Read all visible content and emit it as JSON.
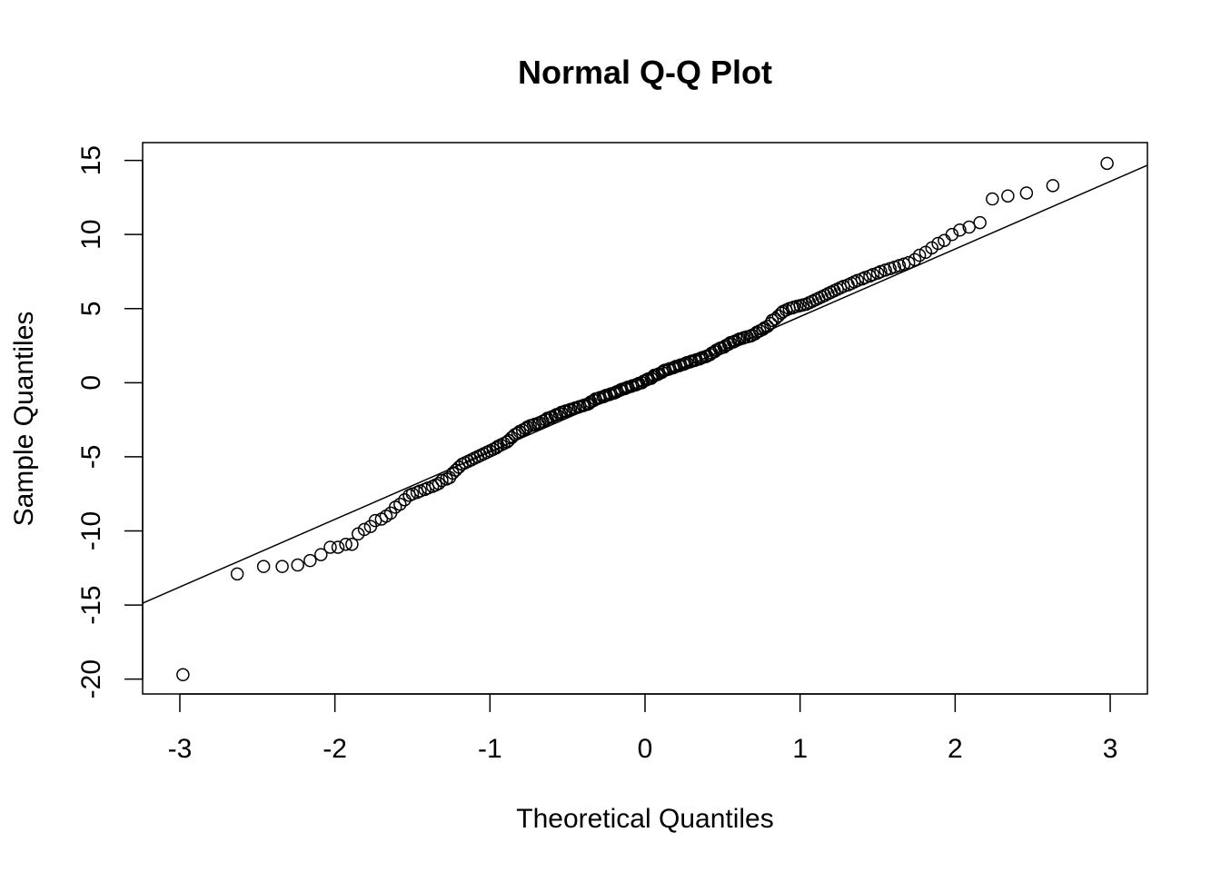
{
  "chart_data": {
    "type": "scatter",
    "title": "Normal Q-Q Plot",
    "xlabel": "Theoretical Quantiles",
    "ylabel": "Sample Quantiles",
    "xlim": [
      -3.24,
      3.24
    ],
    "ylim": [
      -21.0,
      16.2
    ],
    "xticks": [
      -3,
      -2,
      -1,
      0,
      1,
      2,
      3
    ],
    "xtick_labels": [
      "-3",
      "-2",
      "-1",
      "0",
      "1",
      "2",
      "3"
    ],
    "yticks": [
      -20,
      -15,
      -10,
      -5,
      0,
      5,
      10,
      15
    ],
    "ytick_labels": [
      "-20",
      "-15",
      "-10",
      "-5",
      "0",
      "5",
      "10",
      "15"
    ],
    "grid": false,
    "marker": "open-circle",
    "reference_line": {
      "intercept": -0.1,
      "slope": 4.56
    },
    "series": [
      {
        "points": [
          [
            -2.98,
            -19.7
          ],
          [
            -2.63,
            -12.9
          ],
          [
            -2.46,
            -12.4
          ],
          [
            -2.34,
            -12.4
          ],
          [
            -2.24,
            -12.3
          ],
          [
            -2.16,
            -12.0
          ],
          [
            -2.09,
            -11.6
          ],
          [
            -2.03,
            -11.1
          ],
          [
            -1.98,
            -11.1
          ],
          [
            -1.93,
            -10.9
          ],
          [
            -1.89,
            -10.9
          ],
          [
            -1.85,
            -10.2
          ],
          [
            -1.81,
            -9.9
          ],
          [
            -1.77,
            -9.7
          ],
          [
            -1.74,
            -9.3
          ],
          [
            -1.7,
            -9.2
          ],
          [
            -1.67,
            -9.0
          ],
          [
            -1.64,
            -8.8
          ],
          [
            -1.61,
            -8.4
          ],
          [
            -1.58,
            -8.2
          ],
          [
            -1.55,
            -7.9
          ],
          [
            -1.52,
            -7.6
          ],
          [
            -1.5,
            -7.5
          ],
          [
            -1.47,
            -7.4
          ],
          [
            -1.45,
            -7.3
          ],
          [
            -1.42,
            -7.2
          ],
          [
            -1.4,
            -7.1
          ],
          [
            -1.37,
            -7.0
          ],
          [
            -1.35,
            -6.9
          ],
          [
            -1.33,
            -6.8
          ],
          [
            -1.31,
            -6.6
          ],
          [
            -1.28,
            -6.5
          ],
          [
            -1.26,
            -6.4
          ],
          [
            -1.24,
            -6.1
          ],
          [
            -1.22,
            -5.9
          ],
          [
            -1.2,
            -5.7
          ],
          [
            -1.18,
            -5.5
          ],
          [
            -1.16,
            -5.4
          ],
          [
            -1.14,
            -5.3
          ],
          [
            -1.12,
            -5.2
          ],
          [
            -1.1,
            -5.1
          ],
          [
            -1.08,
            -5.0
          ],
          [
            -1.06,
            -4.9
          ],
          [
            -1.04,
            -4.8
          ],
          [
            -1.02,
            -4.7
          ],
          [
            -1.0,
            -4.6
          ],
          [
            -0.98,
            -4.5
          ],
          [
            -0.96,
            -4.4
          ],
          [
            -0.95,
            -4.3
          ],
          [
            -0.93,
            -4.2
          ],
          [
            -0.91,
            -4.1
          ],
          [
            -0.89,
            -4.0
          ],
          [
            -0.88,
            -3.9
          ],
          [
            -0.86,
            -3.7
          ],
          [
            -0.84,
            -3.5
          ],
          [
            -0.82,
            -3.4
          ],
          [
            -0.81,
            -3.3
          ],
          [
            -0.79,
            -3.2
          ],
          [
            -0.77,
            -3.1
          ],
          [
            -0.76,
            -3.0
          ],
          [
            -0.74,
            -2.9
          ],
          [
            -0.72,
            -2.85
          ],
          [
            -0.71,
            -2.8
          ],
          [
            -0.69,
            -2.75
          ],
          [
            -0.68,
            -2.7
          ],
          [
            -0.66,
            -2.6
          ],
          [
            -0.64,
            -2.5
          ],
          [
            -0.63,
            -2.4
          ],
          [
            -0.61,
            -2.35
          ],
          [
            -0.6,
            -2.3
          ],
          [
            -0.58,
            -2.2
          ],
          [
            -0.57,
            -2.15
          ],
          [
            -0.55,
            -2.1
          ],
          [
            -0.54,
            -2.0
          ],
          [
            -0.52,
            -1.95
          ],
          [
            -0.51,
            -1.9
          ],
          [
            -0.49,
            -1.85
          ],
          [
            -0.48,
            -1.8
          ],
          [
            -0.46,
            -1.75
          ],
          [
            -0.45,
            -1.7
          ],
          [
            -0.43,
            -1.65
          ],
          [
            -0.42,
            -1.6
          ],
          [
            -0.4,
            -1.55
          ],
          [
            -0.39,
            -1.5
          ],
          [
            -0.37,
            -1.45
          ],
          [
            -0.36,
            -1.4
          ],
          [
            -0.35,
            -1.3
          ],
          [
            -0.33,
            -1.2
          ],
          [
            -0.32,
            -1.1
          ],
          [
            -0.3,
            -1.05
          ],
          [
            -0.29,
            -1.0
          ],
          [
            -0.27,
            -0.95
          ],
          [
            -0.26,
            -0.9
          ],
          [
            -0.25,
            -0.85
          ],
          [
            -0.23,
            -0.8
          ],
          [
            -0.22,
            -0.75
          ],
          [
            -0.2,
            -0.7
          ],
          [
            -0.19,
            -0.65
          ],
          [
            -0.18,
            -0.6
          ],
          [
            -0.16,
            -0.5
          ],
          [
            -0.15,
            -0.45
          ],
          [
            -0.13,
            -0.4
          ],
          [
            -0.12,
            -0.35
          ],
          [
            -0.11,
            -0.3
          ],
          [
            -0.09,
            -0.25
          ],
          [
            -0.08,
            -0.2
          ],
          [
            -0.06,
            -0.15
          ],
          [
            -0.05,
            -0.1
          ],
          [
            -0.04,
            -0.05
          ],
          [
            -0.02,
            0.0
          ],
          [
            -0.01,
            0.1
          ],
          [
            0.01,
            0.2
          ],
          [
            0.02,
            0.25
          ],
          [
            0.04,
            0.3
          ],
          [
            0.05,
            0.4
          ],
          [
            0.06,
            0.5
          ],
          [
            0.08,
            0.55
          ],
          [
            0.09,
            0.6
          ],
          [
            0.11,
            0.7
          ],
          [
            0.12,
            0.8
          ],
          [
            0.13,
            0.85
          ],
          [
            0.15,
            0.9
          ],
          [
            0.16,
            0.95
          ],
          [
            0.18,
            1.0
          ],
          [
            0.19,
            1.05
          ],
          [
            0.2,
            1.1
          ],
          [
            0.22,
            1.15
          ],
          [
            0.23,
            1.2
          ],
          [
            0.25,
            1.25
          ],
          [
            0.26,
            1.3
          ],
          [
            0.27,
            1.35
          ],
          [
            0.29,
            1.4
          ],
          [
            0.3,
            1.45
          ],
          [
            0.32,
            1.5
          ],
          [
            0.33,
            1.55
          ],
          [
            0.35,
            1.6
          ],
          [
            0.36,
            1.65
          ],
          [
            0.37,
            1.7
          ],
          [
            0.39,
            1.75
          ],
          [
            0.4,
            1.8
          ],
          [
            0.42,
            1.9
          ],
          [
            0.43,
            2.0
          ],
          [
            0.45,
            2.1
          ],
          [
            0.46,
            2.2
          ],
          [
            0.48,
            2.3
          ],
          [
            0.49,
            2.35
          ],
          [
            0.51,
            2.4
          ],
          [
            0.52,
            2.5
          ],
          [
            0.54,
            2.6
          ],
          [
            0.55,
            2.7
          ],
          [
            0.57,
            2.75
          ],
          [
            0.58,
            2.8
          ],
          [
            0.6,
            2.9
          ],
          [
            0.61,
            2.95
          ],
          [
            0.63,
            3.0
          ],
          [
            0.64,
            3.05
          ],
          [
            0.66,
            3.1
          ],
          [
            0.68,
            3.15
          ],
          [
            0.69,
            3.2
          ],
          [
            0.71,
            3.3
          ],
          [
            0.72,
            3.4
          ],
          [
            0.74,
            3.5
          ],
          [
            0.76,
            3.6
          ],
          [
            0.77,
            3.7
          ],
          [
            0.79,
            3.8
          ],
          [
            0.81,
            4.0
          ],
          [
            0.82,
            4.2
          ],
          [
            0.84,
            4.3
          ],
          [
            0.86,
            4.5
          ],
          [
            0.88,
            4.7
          ],
          [
            0.89,
            4.8
          ],
          [
            0.91,
            4.9
          ],
          [
            0.93,
            5.0
          ],
          [
            0.95,
            5.05
          ],
          [
            0.96,
            5.1
          ],
          [
            0.98,
            5.15
          ],
          [
            1.0,
            5.2
          ],
          [
            1.02,
            5.25
          ],
          [
            1.04,
            5.3
          ],
          [
            1.06,
            5.4
          ],
          [
            1.08,
            5.5
          ],
          [
            1.1,
            5.6
          ],
          [
            1.12,
            5.7
          ],
          [
            1.14,
            5.8
          ],
          [
            1.16,
            5.9
          ],
          [
            1.18,
            6.0
          ],
          [
            1.2,
            6.1
          ],
          [
            1.22,
            6.2
          ],
          [
            1.24,
            6.3
          ],
          [
            1.26,
            6.4
          ],
          [
            1.28,
            6.5
          ],
          [
            1.31,
            6.6
          ],
          [
            1.33,
            6.7
          ],
          [
            1.35,
            6.8
          ],
          [
            1.37,
            6.9
          ],
          [
            1.4,
            7.0
          ],
          [
            1.42,
            7.1
          ],
          [
            1.45,
            7.2
          ],
          [
            1.47,
            7.3
          ],
          [
            1.5,
            7.4
          ],
          [
            1.52,
            7.5
          ],
          [
            1.55,
            7.6
          ],
          [
            1.58,
            7.7
          ],
          [
            1.61,
            7.8
          ],
          [
            1.64,
            7.9
          ],
          [
            1.67,
            8.0
          ],
          [
            1.7,
            8.1
          ],
          [
            1.74,
            8.3
          ],
          [
            1.77,
            8.6
          ],
          [
            1.81,
            8.8
          ],
          [
            1.85,
            9.1
          ],
          [
            1.89,
            9.4
          ],
          [
            1.93,
            9.6
          ],
          [
            1.98,
            10.0
          ],
          [
            2.03,
            10.3
          ],
          [
            2.09,
            10.5
          ],
          [
            2.16,
            10.8
          ],
          [
            2.24,
            12.4
          ],
          [
            2.34,
            12.6
          ],
          [
            2.46,
            12.8
          ],
          [
            2.63,
            13.3
          ],
          [
            2.98,
            14.8
          ]
        ]
      }
    ]
  }
}
